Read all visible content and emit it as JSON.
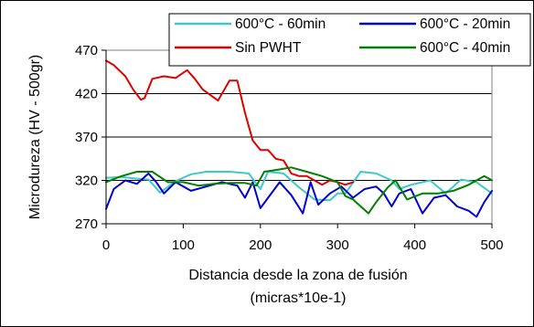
{
  "chart_data": {
    "type": "line",
    "xlabel": "Distancia desde la zona de fusión",
    "xlabel_line2": "(micras*10e-1)",
    "ylabel": "Microdureza (HV - 500gr)",
    "xlim": [
      0,
      500
    ],
    "ylim": [
      270,
      470
    ],
    "xticks": [
      0,
      100,
      200,
      300,
      400,
      500
    ],
    "yticks": [
      270,
      320,
      370,
      420,
      470
    ],
    "grid": "horizontal",
    "legend_position": "top-right",
    "series": [
      {
        "name": "600°C - 60min",
        "color": "#40c8c8",
        "x": [
          0,
          20,
          40,
          55,
          70,
          90,
          110,
          130,
          160,
          185,
          200,
          210,
          230,
          250,
          270,
          290,
          300,
          310,
          330,
          350,
          370,
          380,
          395,
          420,
          440,
          460,
          480,
          500
        ],
        "y": [
          323,
          324,
          322,
          321,
          306,
          319,
          327,
          330,
          330,
          328,
          310,
          330,
          328,
          312,
          298,
          297,
          305,
          305,
          330,
          328,
          320,
          310,
          315,
          320,
          305,
          321,
          318,
          305
        ]
      },
      {
        "name": "600°C - 20min",
        "color": "#0000d0",
        "x": [
          0,
          10,
          25,
          40,
          55,
          65,
          75,
          90,
          110,
          130,
          150,
          170,
          180,
          190,
          200,
          210,
          225,
          240,
          255,
          265,
          275,
          290,
          305,
          320,
          335,
          350,
          360,
          370,
          380,
          395,
          410,
          425,
          440,
          455,
          470,
          480,
          490,
          500
        ],
        "y": [
          287,
          310,
          320,
          316,
          328,
          318,
          305,
          318,
          308,
          313,
          318,
          314,
          300,
          318,
          288,
          300,
          318,
          303,
          282,
          318,
          292,
          305,
          313,
          300,
          310,
          313,
          305,
          290,
          305,
          310,
          282,
          300,
          303,
          290,
          285,
          278,
          295,
          308
        ]
      },
      {
        "name": "Sin PWHT",
        "color": "#e00000",
        "x": [
          0,
          10,
          25,
          35,
          45,
          50,
          60,
          75,
          90,
          105,
          115,
          125,
          145,
          160,
          170,
          180,
          190,
          200,
          210,
          220,
          230,
          240,
          250,
          260,
          270,
          280,
          290,
          300,
          310,
          320
        ],
        "y": [
          458,
          453,
          440,
          425,
          413,
          415,
          437,
          440,
          438,
          447,
          437,
          425,
          412,
          435,
          435,
          398,
          366,
          355,
          355,
          345,
          343,
          328,
          325,
          325,
          320,
          315,
          320,
          318,
          315,
          318
        ]
      },
      {
        "name": "600°C - 40min",
        "color": "#008000",
        "x": [
          0,
          20,
          40,
          60,
          80,
          100,
          120,
          140,
          160,
          180,
          195,
          205,
          220,
          240,
          260,
          280,
          300,
          310,
          320,
          330,
          340,
          350,
          365,
          375,
          390,
          410,
          430,
          450,
          470,
          490,
          500
        ],
        "y": [
          318,
          325,
          330,
          330,
          318,
          318,
          314,
          316,
          317,
          317,
          314,
          330,
          332,
          335,
          330,
          325,
          318,
          302,
          298,
          290,
          282,
          295,
          312,
          320,
          298,
          305,
          305,
          308,
          315,
          325,
          320
        ]
      }
    ]
  }
}
